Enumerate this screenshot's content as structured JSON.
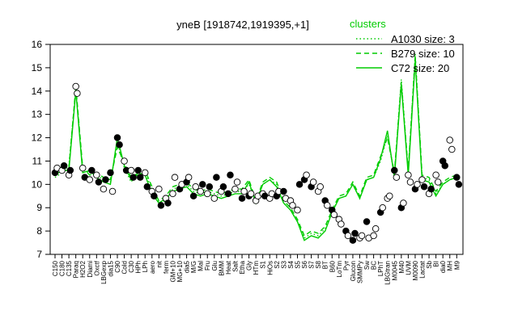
{
  "chart_data": {
    "type": "line",
    "title": "yneB [1918742,1919395,+1]",
    "xlabel": "",
    "ylabel": "",
    "ylim": [
      7,
      16
    ],
    "yticks": [
      7,
      8,
      9,
      10,
      11,
      12,
      13,
      14,
      15,
      16
    ],
    "legend": {
      "title": "clusters",
      "position": "top-right",
      "entries": [
        {
          "label": "A1030 size: 3",
          "style": "dotted",
          "color": "#00cc00"
        },
        {
          "label": "B279 size: 10",
          "style": "dashed",
          "color": "#00cc00"
        },
        {
          "label": "C72 size: 20",
          "style": "solid",
          "color": "#00cc00"
        }
      ]
    },
    "colors": {
      "line": "#00cc00",
      "point_filled": "#000000",
      "point_open": "#ffffff"
    },
    "x_tick_labels": [
      "C150",
      "C180",
      "C135",
      "Paraq",
      "H2O2",
      "Diami",
      "Oxctf",
      "LBGexp",
      "dia15",
      "C90",
      "Cold",
      "C30",
      "HPh",
      "LPh",
      "aero",
      "nit",
      "ferm",
      "GM+10",
      "MG+10",
      "dia5",
      "M/G",
      "Mal",
      "Fru",
      "Glu",
      "BMM",
      "Heat",
      "Salt",
      "Etha",
      "Gly",
      "HTm",
      "S1",
      "HiOs",
      "S2",
      "S3",
      "S4",
      "S5",
      "S6",
      "S7",
      "S8",
      "BT",
      "B60",
      "LoTm",
      "Pyr",
      "Glucon",
      "SMMPy",
      "Sw",
      "BC",
      "LPhT",
      "LBGtran",
      "M0045",
      "M40",
      "UVM",
      "M0090",
      "Lactat",
      "Sb",
      "BI",
      "dia0",
      "MH",
      "M9"
    ],
    "x": [
      1,
      2,
      3,
      4,
      5,
      6,
      7,
      8,
      9,
      10,
      11,
      12,
      13,
      14,
      15,
      16,
      17,
      18,
      19,
      20,
      21,
      22,
      23,
      24,
      25,
      26,
      27,
      28,
      29,
      30,
      31,
      32,
      33,
      34,
      35,
      36,
      37,
      38,
      39,
      40,
      41,
      42,
      43,
      44,
      45,
      46,
      47,
      48,
      49,
      50,
      51,
      52,
      53,
      54,
      55,
      56,
      57,
      58,
      59
    ],
    "series": [
      {
        "name": "C72 size: 20",
        "style": "solid",
        "values": [
          10.4,
          10.6,
          10.6,
          14.0,
          10.5,
          10.6,
          10.3,
          10.1,
          10.0,
          12.0,
          10.8,
          10.2,
          10.5,
          10.4,
          9.6,
          9.2,
          9.4,
          9.7,
          9.8,
          9.9,
          9.6,
          9.5,
          9.6,
          9.5,
          9.4,
          9.5,
          9.6,
          9.6,
          10.1,
          9.2,
          10.0,
          10.2,
          9.9,
          9.2,
          8.9,
          8.4,
          7.6,
          7.8,
          7.7,
          8.0,
          8.8,
          9.4,
          9.5,
          10.0,
          9.4,
          10.2,
          10.3,
          11.1,
          12.3,
          10.3,
          14.3,
          10.4,
          15.3,
          10.2,
          10.1,
          9.5,
          10.0,
          10.2,
          10.3
        ]
      },
      {
        "name": "B279 size: 10",
        "style": "dashed",
        "values": [
          10.5,
          10.7,
          10.7,
          14.2,
          10.7,
          10.4,
          10.5,
          10.3,
          10.2,
          11.6,
          10.9,
          10.3,
          10.4,
          10.6,
          9.9,
          9.3,
          9.5,
          9.9,
          10.0,
          10.1,
          9.8,
          9.7,
          9.8,
          9.7,
          9.6,
          9.7,
          9.8,
          9.8,
          10.2,
          9.3,
          10.1,
          10.3,
          10.1,
          9.3,
          9.0,
          8.5,
          7.8,
          8.0,
          7.9,
          8.2,
          8.9,
          9.5,
          9.6,
          10.1,
          9.5,
          10.3,
          10.4,
          11.2,
          12.0,
          10.5,
          14.4,
          10.6,
          15.5,
          10.4,
          10.3,
          9.7,
          10.1,
          10.3,
          10.4
        ]
      },
      {
        "name": "A1030 size: 3",
        "style": "dotted",
        "values": [
          10.3,
          10.5,
          10.8,
          14.1,
          10.6,
          10.5,
          10.4,
          10.2,
          10.1,
          11.8,
          10.7,
          10.1,
          10.6,
          10.5,
          9.8,
          9.2,
          9.3,
          9.8,
          9.9,
          10.0,
          9.7,
          9.6,
          9.7,
          9.6,
          9.5,
          9.6,
          9.7,
          9.7,
          10.0,
          9.3,
          10.0,
          10.2,
          10.0,
          9.2,
          8.9,
          8.4,
          7.7,
          7.9,
          7.8,
          8.1,
          8.8,
          9.4,
          9.5,
          10.0,
          9.4,
          10.2,
          10.3,
          11.0,
          12.1,
          10.4,
          14.5,
          10.5,
          15.6,
          10.3,
          10.2,
          9.6,
          10.0,
          10.2,
          10.3
        ]
      }
    ],
    "points": [
      {
        "x": 1,
        "y": 10.5,
        "filled": true
      },
      {
        "x": 1.3,
        "y": 10.7,
        "filled": false
      },
      {
        "x": 2,
        "y": 10.6,
        "filled": false
      },
      {
        "x": 2.3,
        "y": 10.8,
        "filled": true
      },
      {
        "x": 3,
        "y": 10.4,
        "filled": false
      },
      {
        "x": 3.2,
        "y": 10.6,
        "filled": true
      },
      {
        "x": 4,
        "y": 14.2,
        "filled": false
      },
      {
        "x": 4.2,
        "y": 13.9,
        "filled": false
      },
      {
        "x": 5,
        "y": 10.7,
        "filled": false
      },
      {
        "x": 5.3,
        "y": 10.3,
        "filled": true
      },
      {
        "x": 6,
        "y": 10.2,
        "filled": false
      },
      {
        "x": 6.3,
        "y": 10.6,
        "filled": true
      },
      {
        "x": 7,
        "y": 10.4,
        "filled": false
      },
      {
        "x": 7.3,
        "y": 10.1,
        "filled": true
      },
      {
        "x": 8,
        "y": 9.8,
        "filled": false
      },
      {
        "x": 8.3,
        "y": 10.2,
        "filled": true
      },
      {
        "x": 9,
        "y": 10.5,
        "filled": true
      },
      {
        "x": 9.3,
        "y": 9.7,
        "filled": false
      },
      {
        "x": 10,
        "y": 12.0,
        "filled": true
      },
      {
        "x": 10.3,
        "y": 11.7,
        "filled": true
      },
      {
        "x": 11,
        "y": 11.0,
        "filled": false
      },
      {
        "x": 11.3,
        "y": 10.6,
        "filled": true
      },
      {
        "x": 12,
        "y": 10.6,
        "filled": false
      },
      {
        "x": 12.3,
        "y": 10.3,
        "filled": true
      },
      {
        "x": 13,
        "y": 10.6,
        "filled": true
      },
      {
        "x": 13.3,
        "y": 10.3,
        "filled": true
      },
      {
        "x": 14,
        "y": 10.5,
        "filled": false
      },
      {
        "x": 14.3,
        "y": 9.9,
        "filled": true
      },
      {
        "x": 15,
        "y": 9.7,
        "filled": false
      },
      {
        "x": 15.3,
        "y": 9.5,
        "filled": true
      },
      {
        "x": 16,
        "y": 9.8,
        "filled": false
      },
      {
        "x": 16.3,
        "y": 9.1,
        "filled": true
      },
      {
        "x": 17,
        "y": 9.4,
        "filled": false
      },
      {
        "x": 17.3,
        "y": 9.2,
        "filled": true
      },
      {
        "x": 18,
        "y": 9.6,
        "filled": false
      },
      {
        "x": 18.3,
        "y": 10.3,
        "filled": false
      },
      {
        "x": 19,
        "y": 9.8,
        "filled": true
      },
      {
        "x": 19.3,
        "y": 10.0,
        "filled": false
      },
      {
        "x": 20,
        "y": 10.1,
        "filled": true
      },
      {
        "x": 20.3,
        "y": 10.3,
        "filled": false
      },
      {
        "x": 21,
        "y": 9.5,
        "filled": true
      },
      {
        "x": 21.3,
        "y": 9.9,
        "filled": false
      },
      {
        "x": 22,
        "y": 9.7,
        "filled": false
      },
      {
        "x": 22.3,
        "y": 10.0,
        "filled": true
      },
      {
        "x": 23,
        "y": 9.6,
        "filled": false
      },
      {
        "x": 23.3,
        "y": 9.9,
        "filled": true
      },
      {
        "x": 24,
        "y": 9.4,
        "filled": false
      },
      {
        "x": 24.3,
        "y": 10.3,
        "filled": true
      },
      {
        "x": 25,
        "y": 9.7,
        "filled": false
      },
      {
        "x": 25.3,
        "y": 9.9,
        "filled": true
      },
      {
        "x": 26,
        "y": 9.6,
        "filled": true
      },
      {
        "x": 26.3,
        "y": 10.4,
        "filled": true
      },
      {
        "x": 27,
        "y": 9.8,
        "filled": false
      },
      {
        "x": 27.3,
        "y": 10.1,
        "filled": false
      },
      {
        "x": 28,
        "y": 9.4,
        "filled": true
      },
      {
        "x": 28.3,
        "y": 9.7,
        "filled": false
      },
      {
        "x": 29,
        "y": 9.5,
        "filled": true
      },
      {
        "x": 29.3,
        "y": 9.6,
        "filled": false
      },
      {
        "x": 30,
        "y": 9.3,
        "filled": false
      },
      {
        "x": 30.3,
        "y": 9.5,
        "filled": false
      },
      {
        "x": 31,
        "y": 9.6,
        "filled": false
      },
      {
        "x": 31.3,
        "y": 9.5,
        "filled": true
      },
      {
        "x": 32,
        "y": 9.4,
        "filled": false
      },
      {
        "x": 32.3,
        "y": 9.6,
        "filled": false
      },
      {
        "x": 33,
        "y": 9.5,
        "filled": true
      },
      {
        "x": 33.3,
        "y": 9.7,
        "filled": false
      },
      {
        "x": 34,
        "y": 9.7,
        "filled": true
      },
      {
        "x": 34.3,
        "y": 9.4,
        "filled": false
      },
      {
        "x": 35,
        "y": 9.3,
        "filled": false
      },
      {
        "x": 35.3,
        "y": 9.1,
        "filled": false
      },
      {
        "x": 36,
        "y": 8.9,
        "filled": false
      },
      {
        "x": 36.3,
        "y": 10.0,
        "filled": true
      },
      {
        "x": 37,
        "y": 10.2,
        "filled": true
      },
      {
        "x": 37.3,
        "y": 10.4,
        "filled": false
      },
      {
        "x": 38,
        "y": 9.9,
        "filled": true
      },
      {
        "x": 38.3,
        "y": 10.1,
        "filled": false
      },
      {
        "x": 39,
        "y": 9.7,
        "filled": false
      },
      {
        "x": 39.3,
        "y": 9.9,
        "filled": false
      },
      {
        "x": 40,
        "y": 9.3,
        "filled": true
      },
      {
        "x": 40.3,
        "y": 9.1,
        "filled": false
      },
      {
        "x": 41,
        "y": 8.9,
        "filled": true
      },
      {
        "x": 41.3,
        "y": 8.7,
        "filled": false
      },
      {
        "x": 42,
        "y": 8.5,
        "filled": false
      },
      {
        "x": 42.3,
        "y": 8.3,
        "filled": false
      },
      {
        "x": 43,
        "y": 8.0,
        "filled": true
      },
      {
        "x": 43.3,
        "y": 7.8,
        "filled": false
      },
      {
        "x": 44,
        "y": 7.6,
        "filled": true
      },
      {
        "x": 44.3,
        "y": 7.9,
        "filled": true
      },
      {
        "x": 45,
        "y": 7.7,
        "filled": false
      },
      {
        "x": 45.3,
        "y": 7.8,
        "filled": false
      },
      {
        "x": 46,
        "y": 8.4,
        "filled": true
      },
      {
        "x": 46.3,
        "y": 7.7,
        "filled": false
      },
      {
        "x": 47,
        "y": 7.8,
        "filled": false
      },
      {
        "x": 47.3,
        "y": 8.1,
        "filled": false
      },
      {
        "x": 48,
        "y": 8.8,
        "filled": true
      },
      {
        "x": 48.3,
        "y": 9.0,
        "filled": false
      },
      {
        "x": 49,
        "y": 9.4,
        "filled": false
      },
      {
        "x": 49.3,
        "y": 9.5,
        "filled": false
      },
      {
        "x": 50,
        "y": 10.6,
        "filled": true
      },
      {
        "x": 50.3,
        "y": 10.3,
        "filled": false
      },
      {
        "x": 51,
        "y": 9.0,
        "filled": true
      },
      {
        "x": 51.3,
        "y": 9.2,
        "filled": false
      },
      {
        "x": 52,
        "y": 10.4,
        "filled": false
      },
      {
        "x": 52.3,
        "y": 10.1,
        "filled": false
      },
      {
        "x": 53,
        "y": 9.8,
        "filled": true
      },
      {
        "x": 53.3,
        "y": 10.0,
        "filled": false
      },
      {
        "x": 54,
        "y": 10.2,
        "filled": false
      },
      {
        "x": 54.3,
        "y": 9.9,
        "filled": true
      },
      {
        "x": 55,
        "y": 9.6,
        "filled": false
      },
      {
        "x": 55.3,
        "y": 9.8,
        "filled": true
      },
      {
        "x": 56,
        "y": 10.4,
        "filled": false
      },
      {
        "x": 56.3,
        "y": 10.1,
        "filled": false
      },
      {
        "x": 57,
        "y": 11.0,
        "filled": true
      },
      {
        "x": 57.3,
        "y": 10.8,
        "filled": true
      },
      {
        "x": 58,
        "y": 11.9,
        "filled": false
      },
      {
        "x": 58.3,
        "y": 11.5,
        "filled": false
      },
      {
        "x": 59,
        "y": 10.3,
        "filled": true
      },
      {
        "x": 59.3,
        "y": 10.0,
        "filled": true
      }
    ],
    "grid": false
  }
}
